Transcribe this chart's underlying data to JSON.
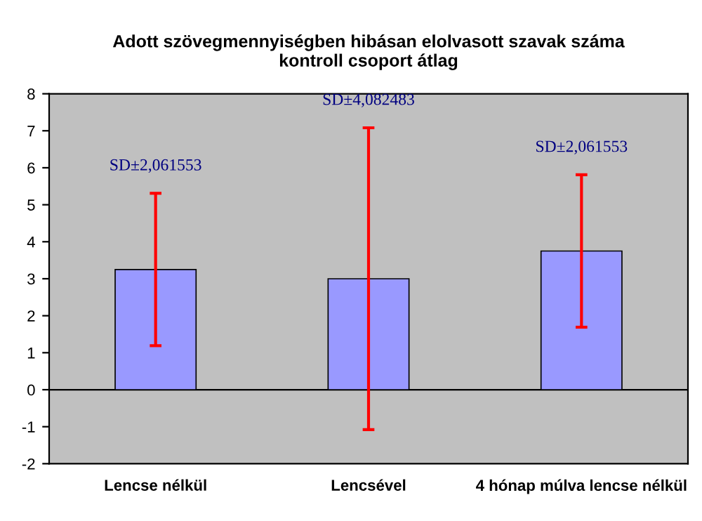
{
  "chart_data": {
    "type": "bar",
    "title": "Adott szövegmennyiségben hibásan elolvasott szavak száma\nkontroll csoport átlag",
    "categories": [
      "Lencse nélkül",
      "Lencsével",
      "4 hónap múlva lencse nélkül"
    ],
    "values": [
      3.25,
      3.0,
      3.75
    ],
    "color": "#9999ff",
    "errors": [
      2.06,
      4.08,
      2.06
    ],
    "ylim": [
      -2,
      8
    ],
    "yticks": [
      -2,
      -1,
      0,
      1,
      2,
      3,
      4,
      5,
      6,
      7,
      8
    ],
    "grid": false,
    "legend": false,
    "annotations": [
      "SD±2,061553",
      "SD±4,082483",
      "SD±2,061553"
    ]
  }
}
